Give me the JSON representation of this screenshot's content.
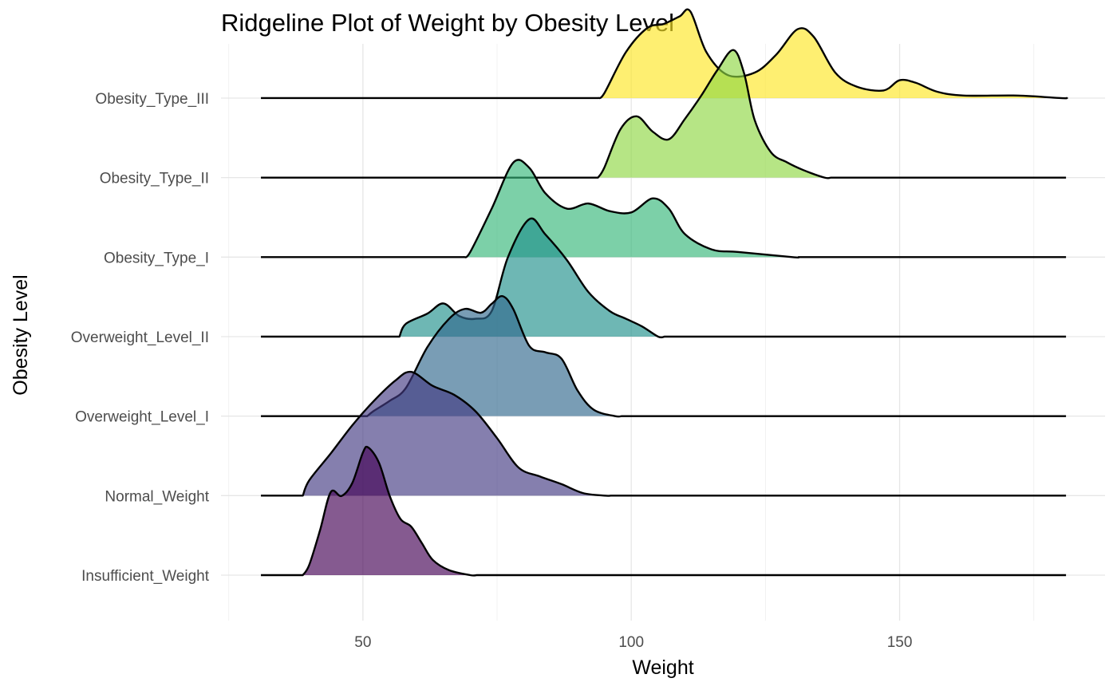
{
  "chart_data": {
    "type": "ridgeline",
    "title": "Ridgeline Plot of Weight by Obesity Level",
    "xlabel": "Weight",
    "ylabel": "Obesity Level",
    "xlim": [
      25,
      185
    ],
    "x_ticks": [
      50,
      100,
      150
    ],
    "x_tick_labels": [
      "50",
      "100",
      "150"
    ],
    "grid": true,
    "legend": "none",
    "series": [
      {
        "name": "Insufficient_Weight",
        "color": "#440154",
        "points": [
          [
            40,
            0.08
          ],
          [
            42,
            0.35
          ],
          [
            44,
            0.65
          ],
          [
            46,
            0.62
          ],
          [
            48,
            0.72
          ],
          [
            50,
            0.96
          ],
          [
            51,
            1.0
          ],
          [
            53,
            0.88
          ],
          [
            55,
            0.62
          ],
          [
            57,
            0.44
          ],
          [
            59,
            0.38
          ],
          [
            61,
            0.25
          ],
          [
            63,
            0.12
          ],
          [
            66,
            0.04
          ],
          [
            70,
            0.0
          ]
        ]
      },
      {
        "name": "Normal_Weight",
        "color": "#443A83",
        "points": [
          [
            40,
            0.12
          ],
          [
            44,
            0.33
          ],
          [
            48,
            0.55
          ],
          [
            52,
            0.74
          ],
          [
            56,
            0.9
          ],
          [
            59,
            0.97
          ],
          [
            63,
            0.86
          ],
          [
            67,
            0.79
          ],
          [
            71,
            0.66
          ],
          [
            75,
            0.45
          ],
          [
            79,
            0.22
          ],
          [
            83,
            0.15
          ],
          [
            87,
            0.09
          ],
          [
            91,
            0.02
          ],
          [
            95,
            0.0
          ]
        ]
      },
      {
        "name": "Overweight_Level_I",
        "color": "#31688E",
        "points": [
          [
            52,
            0.04
          ],
          [
            55,
            0.12
          ],
          [
            58,
            0.22
          ],
          [
            62,
            0.54
          ],
          [
            66,
            0.76
          ],
          [
            69,
            0.84
          ],
          [
            72,
            0.81
          ],
          [
            74,
            0.88
          ],
          [
            76,
            0.94
          ],
          [
            78,
            0.84
          ],
          [
            81,
            0.55
          ],
          [
            84,
            0.5
          ],
          [
            87,
            0.45
          ],
          [
            90,
            0.2
          ],
          [
            93,
            0.05
          ],
          [
            97,
            0.0
          ]
        ]
      },
      {
        "name": "Overweight_Level_II",
        "color": "#21908C",
        "points": [
          [
            58,
            0.1
          ],
          [
            62,
            0.18
          ],
          [
            65,
            0.26
          ],
          [
            68,
            0.16
          ],
          [
            71,
            0.14
          ],
          [
            74,
            0.2
          ],
          [
            77,
            0.62
          ],
          [
            81,
            0.92
          ],
          [
            84,
            0.8
          ],
          [
            88,
            0.6
          ],
          [
            92,
            0.35
          ],
          [
            96,
            0.2
          ],
          [
            99,
            0.14
          ],
          [
            102,
            0.08
          ],
          [
            105,
            0.0
          ]
        ]
      },
      {
        "name": "Obesity_Type_I",
        "color": "#35B779",
        "points": [
          [
            70,
            0.04
          ],
          [
            74,
            0.38
          ],
          [
            78,
            0.74
          ],
          [
            81,
            0.7
          ],
          [
            84,
            0.5
          ],
          [
            88,
            0.38
          ],
          [
            92,
            0.42
          ],
          [
            96,
            0.36
          ],
          [
            100,
            0.35
          ],
          [
            104,
            0.46
          ],
          [
            107,
            0.38
          ],
          [
            110,
            0.18
          ],
          [
            115,
            0.06
          ],
          [
            120,
            0.04
          ],
          [
            130,
            0.0
          ]
        ]
      },
      {
        "name": "Obesity_Type_II",
        "color": "#8FD744",
        "points": [
          [
            95,
            0.08
          ],
          [
            98,
            0.38
          ],
          [
            101,
            0.48
          ],
          [
            104,
            0.36
          ],
          [
            107,
            0.3
          ],
          [
            110,
            0.46
          ],
          [
            113,
            0.64
          ],
          [
            116,
            0.84
          ],
          [
            119,
            1.0
          ],
          [
            121,
            0.82
          ],
          [
            123,
            0.45
          ],
          [
            126,
            0.2
          ],
          [
            129,
            0.12
          ],
          [
            132,
            0.06
          ],
          [
            136,
            0.0
          ]
        ]
      },
      {
        "name": "Obesity_Type_III",
        "color": "#FDE725",
        "points": [
          [
            95,
            0.04
          ],
          [
            99,
            0.36
          ],
          [
            103,
            0.55
          ],
          [
            106,
            0.58
          ],
          [
            109,
            0.64
          ],
          [
            111,
            0.68
          ],
          [
            114,
            0.36
          ],
          [
            118,
            0.18
          ],
          [
            123,
            0.2
          ],
          [
            127,
            0.34
          ],
          [
            131,
            0.54
          ],
          [
            134,
            0.48
          ],
          [
            138,
            0.2
          ],
          [
            142,
            0.09
          ],
          [
            147,
            0.06
          ],
          [
            150,
            0.14
          ],
          [
            153,
            0.12
          ],
          [
            157,
            0.05
          ],
          [
            162,
            0.02
          ],
          [
            172,
            0.02
          ],
          [
            180,
            0.0
          ]
        ]
      }
    ]
  }
}
